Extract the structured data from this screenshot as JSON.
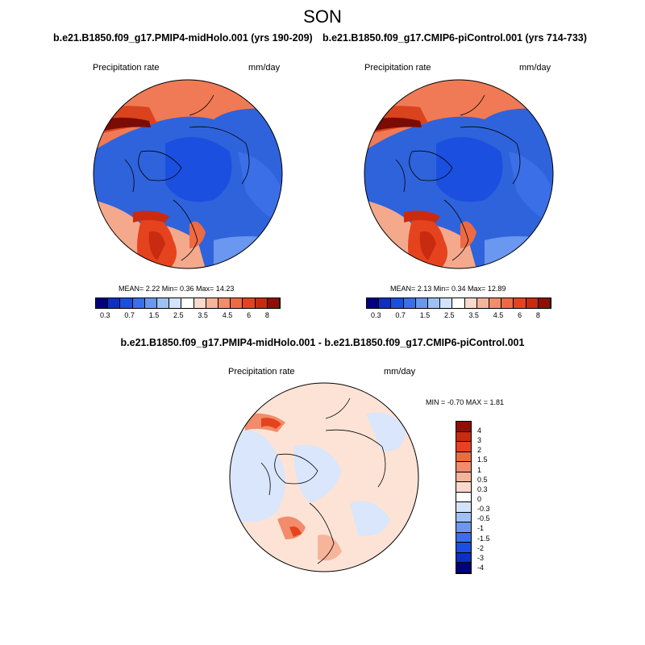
{
  "season": "SON",
  "panels": [
    {
      "title": "b.e21.B1850.f09_g17.PMIP4-midHolo.001 (yrs 190-209)",
      "variable": "Precipitation rate",
      "units": "mm/day",
      "stats": "MEAN=   2.22  Min=   0.36  Max=  14.23",
      "colorbar_labels": [
        "0.3",
        "0.7",
        "1.5",
        "2.5",
        "3.5",
        "4.5",
        "6",
        "8"
      ]
    },
    {
      "title": "b.e21.B1850.f09_g17.CMIP6-piControl.001 (yrs 714-733)",
      "variable": "Precipitation rate",
      "units": "mm/day",
      "stats": "MEAN=   2.13  Min=   0.34  Max=  12.89",
      "colorbar_labels": [
        "0.3",
        "0.7",
        "1.5",
        "2.5",
        "3.5",
        "4.5",
        "6",
        "8"
      ]
    }
  ],
  "diff": {
    "title": "b.e21.B1850.f09_g17.PMIP4-midHolo.001 - b.e21.B1850.f09_g17.CMIP6-piControl.001",
    "variable": "Precipitation rate",
    "units": "mm/day",
    "stats": "MIN =  -0.70 MAX =   1.81",
    "colorbar_labels": [
      "4",
      "3",
      "2",
      "1.5",
      "1",
      "0.5",
      "0.3",
      "0",
      "-0.3",
      "-0.5",
      "-1",
      "-1.5",
      "-2",
      "-3",
      "-4"
    ]
  },
  "colors": {
    "abs_scale": [
      "#000080",
      "#0d2fc4",
      "#1b4fe0",
      "#3a6fe8",
      "#6a97ef",
      "#9fc0f5",
      "#d2e4fa",
      "#ffffff",
      "#fbd9cc",
      "#f6b49a",
      "#f28c6a",
      "#ee6a43",
      "#e5431e",
      "#c92b10",
      "#8f0f05"
    ],
    "diff_scale": [
      "#8f0f05",
      "#c92b10",
      "#e5431e",
      "#ee6a43",
      "#f28c6a",
      "#f6b49a",
      "#fbd9cc",
      "#ffffff",
      "#d2e4fa",
      "#9fc0f5",
      "#6a97ef",
      "#3a6fe8",
      "#1b4fe0",
      "#0d2fc4",
      "#000080"
    ]
  }
}
